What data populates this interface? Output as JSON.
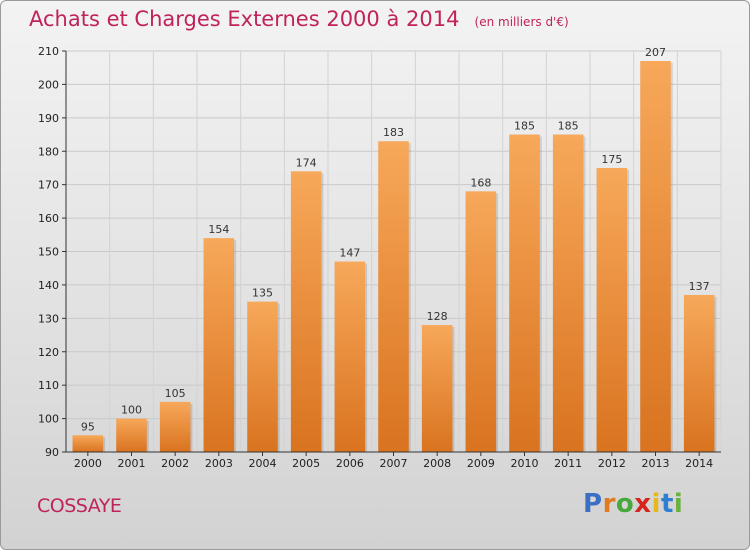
{
  "header": {
    "title": "Achats et Charges Externes 2000 à 2014",
    "unit_note": "(en milliers d'€)"
  },
  "footer": {
    "commune": "COSSAYE",
    "brand": {
      "letters": [
        "P",
        "r",
        "o",
        "x",
        "i",
        "t",
        "i"
      ],
      "colors": [
        "#3b6fc4",
        "#e07b1f",
        "#49a83a",
        "#d6261c",
        "#e7b81e",
        "#2f7fd0",
        "#6ab23e"
      ]
    }
  },
  "colors": {
    "title": "#c0235b",
    "bar_light": "#f7a85a",
    "bar_dark": "#d9731f"
  },
  "chart_data": {
    "type": "bar",
    "categories": [
      "2000",
      "2001",
      "2002",
      "2003",
      "2004",
      "2005",
      "2006",
      "2007",
      "2008",
      "2009",
      "2010",
      "2011",
      "2012",
      "2013",
      "2014"
    ],
    "values": [
      95,
      100,
      105,
      154,
      135,
      174,
      147,
      183,
      128,
      168,
      185,
      185,
      175,
      207,
      137
    ],
    "value_labels": [
      "95",
      "100",
      "105",
      "154",
      "135",
      "174",
      "147",
      "183",
      "128",
      "168",
      "185",
      "185",
      "175",
      "207",
      "137"
    ],
    "title": "Achats et Charges Externes 2000 à 2014",
    "ylim": [
      90,
      210
    ],
    "yticks": [
      90,
      100,
      110,
      120,
      130,
      140,
      150,
      160,
      170,
      180,
      190,
      200,
      210
    ],
    "ytick_labels": [
      "90",
      "100",
      "110",
      "120",
      "130",
      "140",
      "150",
      "160",
      "170",
      "180",
      "190",
      "200",
      "210"
    ],
    "grid": true,
    "legend": "none"
  }
}
